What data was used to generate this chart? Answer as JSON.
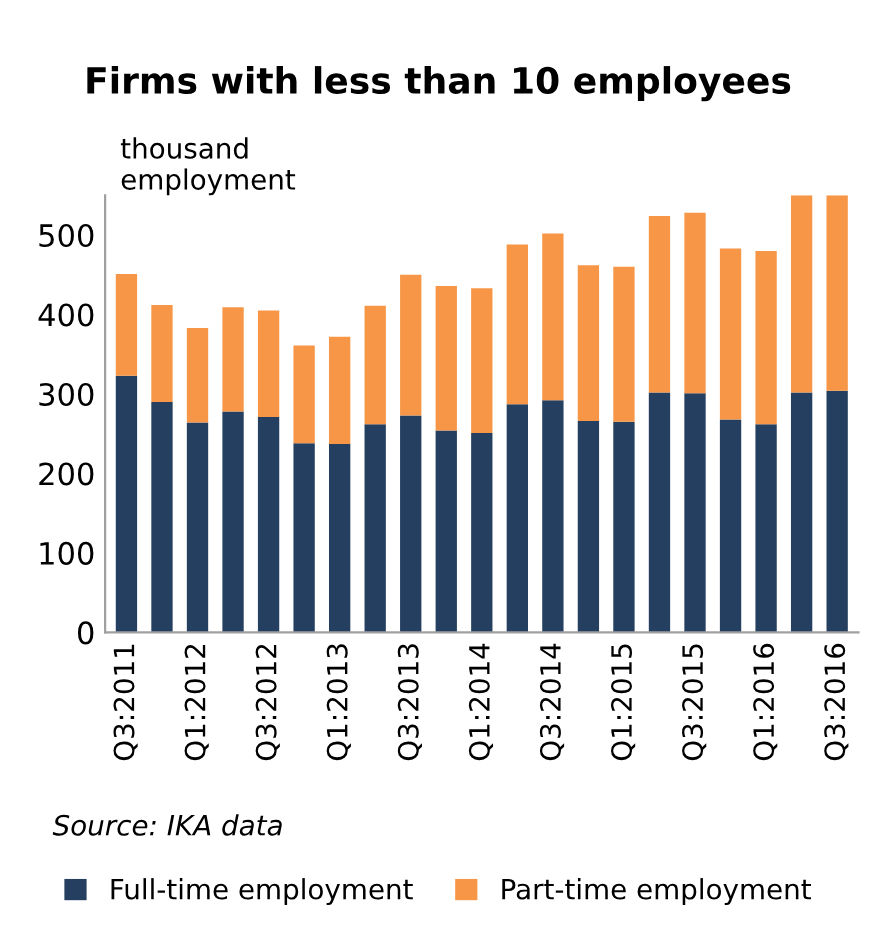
{
  "chart_data": {
    "type": "bar",
    "title": "Firms with less than 10 employees",
    "ylabel": "thousand\nemployment",
    "categories": [
      "Q3:2011",
      null,
      "Q1:2012",
      null,
      "Q3:2012",
      null,
      "Q1:2013",
      null,
      "Q3:2013",
      null,
      "Q1:2014",
      null,
      "Q3:2014",
      null,
      "Q1:2015",
      null,
      "Q3:2015",
      null,
      "Q1:2016",
      null,
      "Q3:2016"
    ],
    "series": [
      {
        "name": "Full-time employment",
        "color": "#243f60",
        "values": [
          323,
          290,
          264,
          278,
          271,
          238,
          237,
          262,
          273,
          254,
          251,
          287,
          292,
          266,
          265,
          302,
          301,
          268,
          262,
          302,
          304
        ]
      },
      {
        "name": "Part-time employment",
        "color": "#f79646",
        "values": [
          128,
          122,
          119,
          131,
          134,
          123,
          135,
          149,
          177,
          182,
          182,
          201,
          210,
          196,
          195,
          222,
          227,
          215,
          218,
          248,
          246
        ]
      }
    ],
    "stacked": true,
    "ylim": [
      0,
      550
    ],
    "yticks": [
      0,
      100,
      200,
      300,
      400,
      500
    ],
    "grid": false,
    "legend": "bottom",
    "annotations": [
      "Source: IKA data"
    ]
  }
}
